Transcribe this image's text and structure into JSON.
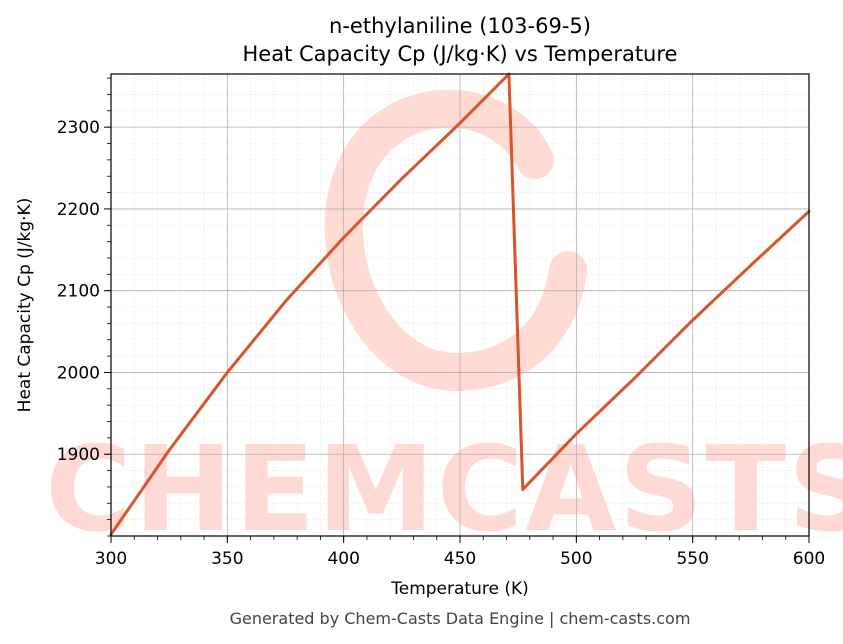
{
  "chart_data": {
    "type": "line",
    "title_line1": "n-ethylaniline (103-69-5)",
    "title_line2": "Heat Capacity Cp (J/kg·K) vs Temperature",
    "xlabel": "Temperature (K)",
    "ylabel": "Heat Capacity Cp (J/kg·K)",
    "xlim": [
      300,
      600
    ],
    "ylim": [
      1800,
      2365
    ],
    "x_ticks": [
      300,
      350,
      400,
      450,
      500,
      550,
      600
    ],
    "y_ticks": [
      1900,
      2000,
      2100,
      2200,
      2300
    ],
    "grid": true,
    "series": [
      {
        "color": "#d9542b",
        "points": [
          [
            300,
            1802
          ],
          [
            325,
            1905
          ],
          [
            350,
            2000
          ],
          [
            375,
            2087
          ],
          [
            400,
            2165
          ],
          [
            425,
            2237
          ],
          [
            450,
            2305
          ],
          [
            471,
            2365
          ],
          [
            477,
            1857
          ],
          [
            500,
            1925
          ],
          [
            525,
            1993
          ],
          [
            550,
            2064
          ],
          [
            575,
            2131
          ],
          [
            600,
            2197
          ]
        ]
      }
    ]
  },
  "watermark": {
    "text": "CHEMCASTS",
    "color": "#ffd9d2"
  },
  "footer": "Generated by Chem-Casts Data Engine | chem-casts.com"
}
